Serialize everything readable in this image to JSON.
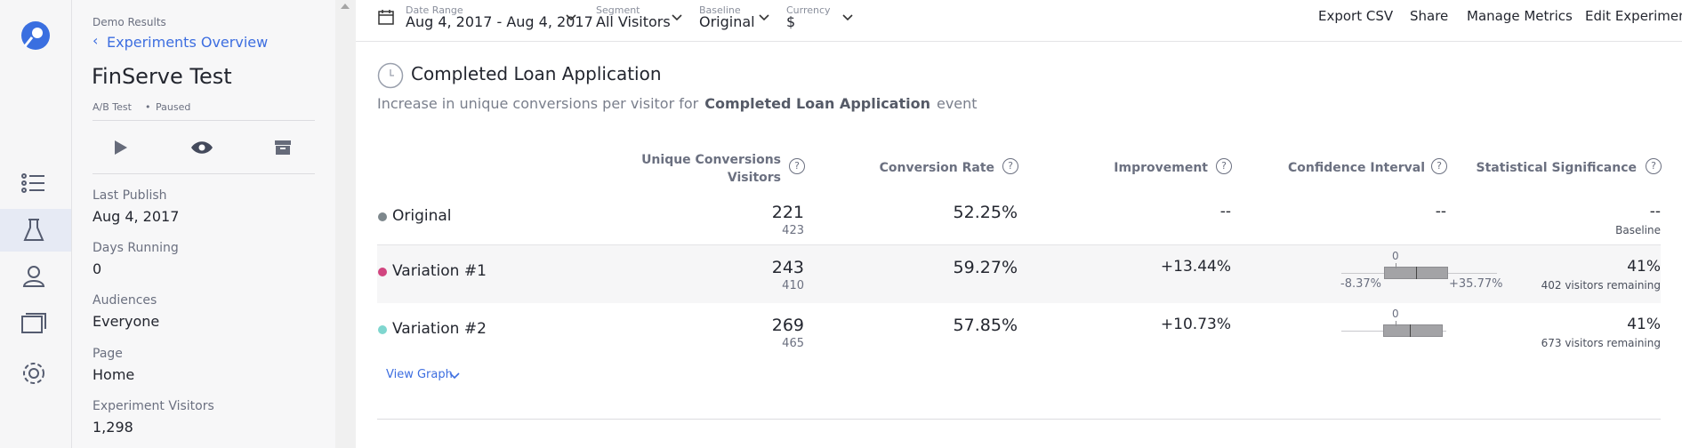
{
  "sidebar": {
    "section": "Demo Results",
    "back_link": "Experiments Overview",
    "title": "FinServe Test",
    "experiment_type": "A/B Test",
    "status": "Paused",
    "details": [
      {
        "label": "Last Publish",
        "value": "Aug 4, 2017"
      },
      {
        "label": "Days Running",
        "value": "0"
      },
      {
        "label": "Audiences",
        "value": "Everyone"
      },
      {
        "label": "Page",
        "value": "Home"
      },
      {
        "label": "Experiment Visitors",
        "value": "1,298"
      }
    ]
  },
  "toolbar": {
    "filters": [
      {
        "label": "Date Range",
        "value": "Aug 4, 2017 - Aug 4, 2017"
      },
      {
        "label": "Segment",
        "value": "All Visitors"
      },
      {
        "label": "Baseline",
        "value": "Original"
      },
      {
        "label": "Currency",
        "value": "$"
      }
    ],
    "actions": [
      "Export CSV",
      "Share",
      "Manage Metrics",
      "Edit Experiment"
    ]
  },
  "metric": {
    "title": "Completed Loan Application",
    "description_prefix": "Increase in unique conversions per visitor for",
    "description_event": "Completed Loan Application",
    "description_suffix": "event"
  },
  "table": {
    "headers": {
      "conversions": "Unique Conversions",
      "visitors": "Visitors",
      "rate": "Conversion Rate",
      "improvement": "Improvement",
      "interval": "Confidence Interval",
      "significance": "Statistical Significance"
    },
    "rows": [
      {
        "name": "Original",
        "color": "#7d878c",
        "conversions": 221,
        "visitors": 423,
        "rate": "52.25%",
        "improvement": "--",
        "interval": "--",
        "significance": "--",
        "note": "Baseline"
      },
      {
        "name": "Variation #1",
        "color": "#d1457f",
        "conversions": 243,
        "visitors": 410,
        "rate": "59.27%",
        "improvement": "+13.44%",
        "interval": {
          "zero": "0",
          "low": "-8.37%",
          "high": "+35.77%"
        },
        "significance": "41%",
        "note": "402 visitors remaining"
      },
      {
        "name": "Variation #2",
        "color": "#7fd6cf",
        "conversions": 269,
        "visitors": 465,
        "rate": "57.85%",
        "improvement": "+10.73%",
        "interval": {
          "zero": "0"
        },
        "significance": "41%",
        "note": "673 visitors remaining"
      }
    ]
  },
  "view_graph": "View Graph"
}
